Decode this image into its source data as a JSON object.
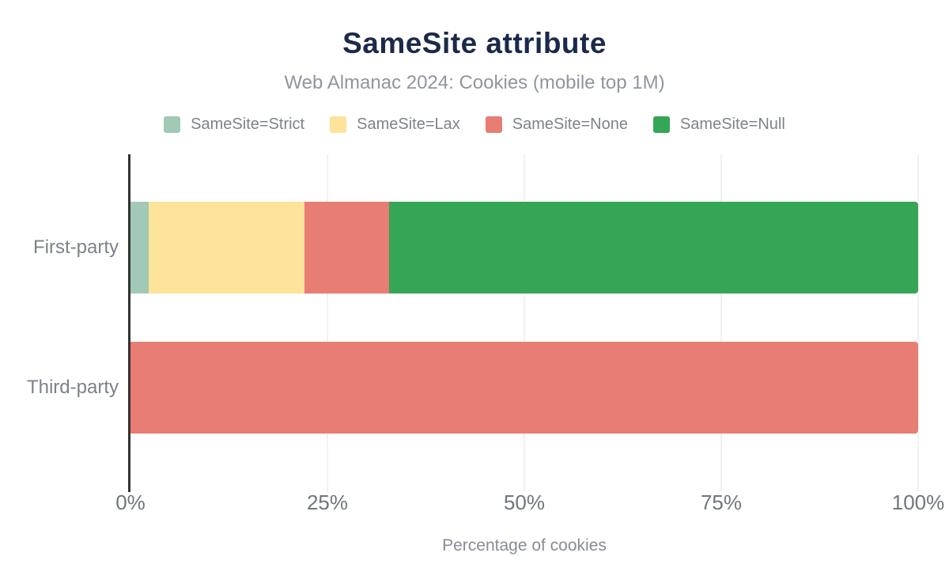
{
  "title": "SameSite attribute",
  "subtitle": "Web Almanac 2024: Cookies (mobile top 1M)",
  "xlabel": "Percentage of cookies",
  "chart_data": {
    "type": "bar",
    "orientation": "horizontal",
    "stacked": true,
    "title": "SameSite attribute",
    "subtitle": "Web Almanac 2024: Cookies (mobile top 1M)",
    "xlabel": "Percentage of cookies",
    "ylabel": "",
    "categories": [
      "First-party",
      "Third-party"
    ],
    "series": [
      {
        "name": "SameSite=Strict",
        "color": "#a2c9b5",
        "values": [
          2.3,
          0
        ]
      },
      {
        "name": "SameSite=Lax",
        "color": "#fde49a",
        "values": [
          19.8,
          0
        ]
      },
      {
        "name": "SameSite=None",
        "color": "#e77d73",
        "values": [
          10.7,
          100
        ]
      },
      {
        "name": "SameSite=Null",
        "color": "#35a657",
        "values": [
          67.2,
          0
        ]
      }
    ],
    "xlim": [
      0,
      100
    ],
    "x_ticks": [
      {
        "value": 0,
        "label": "0%"
      },
      {
        "value": 25,
        "label": "25%"
      },
      {
        "value": 50,
        "label": "50%"
      },
      {
        "value": 75,
        "label": "75%"
      },
      {
        "value": 100,
        "label": "100%"
      }
    ],
    "gridlines_at": [
      25,
      50,
      75,
      100
    ],
    "grid": "vertical",
    "legend_position": "top"
  },
  "colors": {
    "title": "#1b2a4a",
    "subtitle": "#8f969f",
    "legend_text": "#7d838b",
    "category_text": "#7c828a",
    "tick_text": "#70767e",
    "axis_line": "#333333",
    "gridline": "#f1f1f1",
    "background": "#ffffff"
  }
}
